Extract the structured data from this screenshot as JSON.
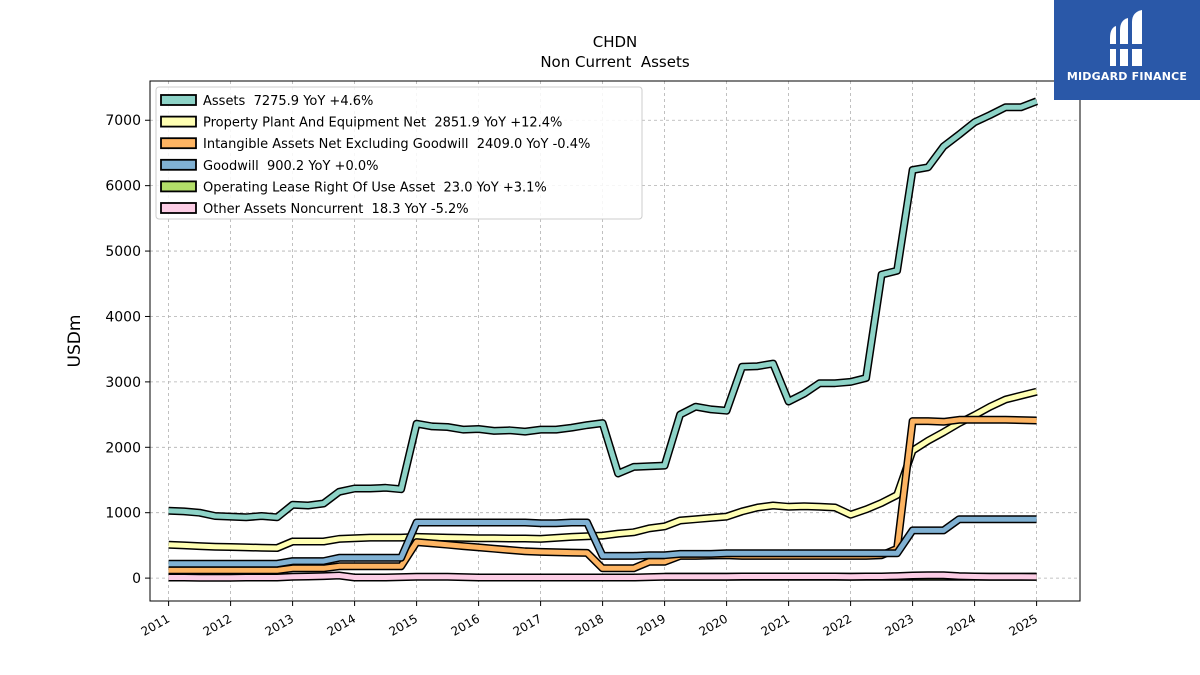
{
  "chart_data": {
    "type": "line",
    "title": "CHDN",
    "subtitle": "Non Current  Assets",
    "ylabel": "USDm",
    "ylim": [
      -350,
      7600
    ],
    "xlim": [
      2010.7,
      2025.7
    ],
    "yticks": [
      0,
      1000,
      2000,
      3000,
      4000,
      5000,
      6000,
      7000
    ],
    "xticks": [
      2011,
      2012,
      2013,
      2014,
      2015,
      2016,
      2017,
      2018,
      2019,
      2020,
      2021,
      2022,
      2023,
      2024,
      2025
    ],
    "grid": true,
    "legend_position": "top-left",
    "x": [
      2011.0,
      2011.25,
      2011.5,
      2011.75,
      2012.0,
      2012.25,
      2012.5,
      2012.75,
      2013.0,
      2013.25,
      2013.5,
      2013.75,
      2014.0,
      2014.25,
      2014.5,
      2014.75,
      2015.0,
      2015.25,
      2015.5,
      2015.75,
      2016.0,
      2016.25,
      2016.5,
      2016.75,
      2017.0,
      2017.25,
      2017.5,
      2017.75,
      2018.0,
      2018.25,
      2018.5,
      2018.75,
      2019.0,
      2019.25,
      2019.5,
      2019.75,
      2020.0,
      2020.25,
      2020.5,
      2020.75,
      2021.0,
      2021.25,
      2021.5,
      2021.75,
      2022.0,
      2022.25,
      2022.5,
      2022.75,
      2023.0,
      2023.25,
      2023.5,
      2023.75,
      2024.0,
      2024.25,
      2024.5,
      2024.75,
      2025.0
    ],
    "series": [
      {
        "name": "Assets",
        "legend": "Assets  7275.9 YoY +4.6%",
        "color": "#8dd3c7",
        "values": [
          1030,
          1020,
          1000,
          950,
          940,
          930,
          950,
          930,
          1120,
          1110,
          1140,
          1320,
          1370,
          1370,
          1380,
          1360,
          2360,
          2320,
          2310,
          2270,
          2280,
          2250,
          2260,
          2240,
          2270,
          2270,
          2300,
          2340,
          2370,
          1600,
          1700,
          1710,
          1720,
          2500,
          2620,
          2580,
          2560,
          3230,
          3240,
          3280,
          2700,
          2820,
          2980,
          2980,
          3000,
          3060,
          4640,
          4700,
          6240,
          6280,
          6600,
          6780,
          6970,
          7080,
          7200,
          7200,
          7290
        ]
      },
      {
        "name": "Property Plant And Equipment Net",
        "legend": "Property Plant And Equipment Net  2851.9 YoY +12.4%",
        "color": "#ffffb3",
        "values": [
          510,
          500,
          490,
          480,
          475,
          470,
          465,
          460,
          560,
          560,
          560,
          600,
          610,
          620,
          620,
          620,
          630,
          625,
          620,
          615,
          610,
          610,
          605,
          605,
          600,
          615,
          630,
          640,
          650,
          680,
          700,
          760,
          790,
          880,
          900,
          920,
          940,
          1020,
          1080,
          1110,
          1090,
          1100,
          1090,
          1080,
          970,
          1050,
          1150,
          1270,
          1950,
          2100,
          2230,
          2370,
          2490,
          2620,
          2730,
          2790,
          2850
        ]
      },
      {
        "name": "Intangible Assets Net Excluding Goodwill",
        "legend": "Intangible Assets Net Excluding Goodwill  2409.0 YoY -0.4%",
        "color": "#fdb462",
        "values": [
          120,
          120,
          120,
          120,
          120,
          120,
          120,
          120,
          150,
          150,
          150,
          180,
          180,
          180,
          180,
          180,
          550,
          530,
          510,
          490,
          470,
          450,
          430,
          410,
          400,
          395,
          390,
          385,
          150,
          150,
          150,
          250,
          250,
          340,
          340,
          345,
          350,
          340,
          340,
          340,
          340,
          340,
          340,
          340,
          340,
          340,
          350,
          450,
          2400,
          2400,
          2390,
          2420,
          2420,
          2420,
          2420,
          2415,
          2410
        ]
      },
      {
        "name": "Goodwill",
        "legend": "Goodwill  900.2 YoY +0.0%",
        "color": "#80b1d3",
        "values": [
          220,
          220,
          220,
          220,
          220,
          220,
          220,
          220,
          260,
          260,
          260,
          310,
          310,
          310,
          310,
          310,
          850,
          850,
          850,
          850,
          850,
          850,
          850,
          850,
          840,
          840,
          850,
          850,
          340,
          340,
          340,
          350,
          350,
          370,
          370,
          370,
          380,
          380,
          380,
          380,
          380,
          380,
          380,
          380,
          380,
          380,
          380,
          380,
          730,
          730,
          730,
          900,
          900,
          900,
          900,
          900,
          900
        ]
      },
      {
        "name": "Operating Lease Right Of Use Asset",
        "legend": "Operating Lease Right Of Use Asset  23.0 YoY +3.1%",
        "color": "#b3de69",
        "values": [
          null,
          null,
          null,
          null,
          null,
          null,
          null,
          null,
          null,
          null,
          null,
          null,
          null,
          null,
          null,
          null,
          null,
          null,
          null,
          null,
          null,
          null,
          null,
          null,
          null,
          null,
          null,
          null,
          null,
          null,
          null,
          null,
          20,
          20,
          20,
          20,
          20,
          20,
          20,
          20,
          20,
          20,
          20,
          20,
          20,
          20,
          20,
          22,
          22,
          22,
          22,
          22,
          22,
          22,
          22,
          22,
          23
        ]
      },
      {
        "name": "Other Assets Noncurrent",
        "legend": "Other Assets Noncurrent  18.3 YoY -5.2%",
        "color": "#fccde5",
        "values": [
          10,
          10,
          5,
          5,
          5,
          10,
          10,
          10,
          20,
          25,
          30,
          40,
          10,
          10,
          10,
          15,
          20,
          20,
          20,
          15,
          10,
          10,
          10,
          10,
          10,
          10,
          10,
          10,
          10,
          10,
          10,
          15,
          20,
          20,
          20,
          20,
          20,
          25,
          25,
          25,
          25,
          25,
          25,
          25,
          20,
          25,
          25,
          30,
          40,
          45,
          45,
          30,
          25,
          20,
          20,
          20,
          18
        ]
      }
    ]
  },
  "logo": {
    "text": "MIDGARD FINANCE"
  },
  "colors": {
    "logo_bg": "#2a58a8",
    "grid": "#b0b0b0",
    "outline": "#000000"
  }
}
